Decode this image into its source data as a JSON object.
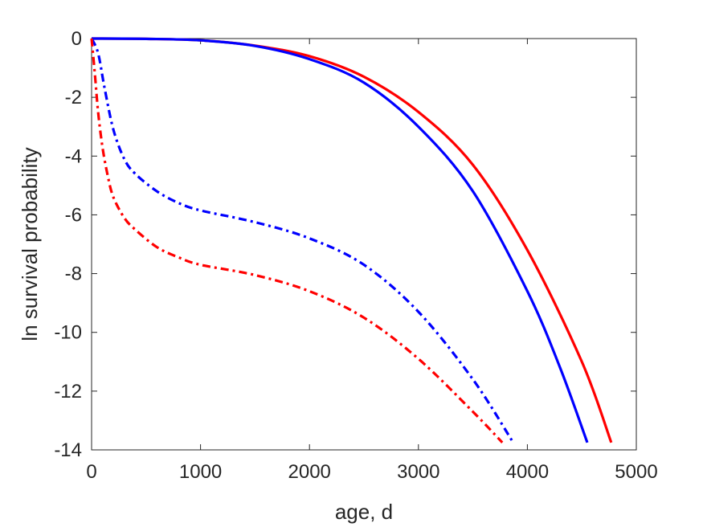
{
  "chart_data": {
    "type": "line",
    "xlabel": "age, d",
    "ylabel": "ln survival probability",
    "xlim": [
      0,
      5000
    ],
    "ylim": [
      -14,
      0
    ],
    "xticks": [
      "0",
      "1000",
      "2000",
      "3000",
      "4000",
      "5000"
    ],
    "yticks": [
      "0",
      "-2",
      "-4",
      "-6",
      "-8",
      "-10",
      "-12",
      "-14"
    ],
    "xtick_values": [
      0,
      1000,
      2000,
      3000,
      4000,
      5000
    ],
    "ytick_values": [
      0,
      -2,
      -4,
      -6,
      -8,
      -10,
      -12,
      -14
    ],
    "grid": false,
    "series": [
      {
        "color": "#ff0000",
        "style": "solid",
        "x": [
          0,
          500,
          1000,
          1500,
          2000,
          2500,
          3000,
          3500,
          4000,
          4500,
          4770
        ],
        "y": [
          0,
          -0.01,
          -0.06,
          -0.24,
          -0.6,
          -1.3,
          -2.5,
          -4.3,
          -7.2,
          -11.0,
          -13.75
        ]
      },
      {
        "color": "#0000ff",
        "style": "solid",
        "x": [
          0,
          500,
          1000,
          1500,
          2000,
          2500,
          3000,
          3500,
          4000,
          4300,
          4550
        ],
        "y": [
          0,
          -0.01,
          -0.06,
          -0.25,
          -0.7,
          -1.5,
          -3.0,
          -5.2,
          -8.6,
          -11.2,
          -13.75
        ]
      },
      {
        "color": "#0000ff",
        "style": "dashdot",
        "x": [
          0,
          60,
          120,
          200,
          300,
          400,
          600,
          800,
          1000,
          1500,
          2000,
          2500,
          3000,
          3500,
          3870
        ],
        "y": [
          0,
          -0.5,
          -1.7,
          -3.1,
          -4.1,
          -4.6,
          -5.2,
          -5.6,
          -5.85,
          -6.25,
          -6.8,
          -7.7,
          -9.3,
          -11.6,
          -13.75
        ]
      },
      {
        "color": "#ff0000",
        "style": "dashdot",
        "x": [
          0,
          30,
          60,
          100,
          150,
          200,
          300,
          400,
          600,
          800,
          1000,
          1500,
          2000,
          2500,
          3000,
          3500,
          3770
        ],
        "y": [
          0,
          -1.2,
          -2.5,
          -3.7,
          -4.7,
          -5.4,
          -6.1,
          -6.5,
          -7.1,
          -7.45,
          -7.7,
          -8.05,
          -8.6,
          -9.5,
          -10.9,
          -12.7,
          -13.75
        ]
      }
    ]
  }
}
